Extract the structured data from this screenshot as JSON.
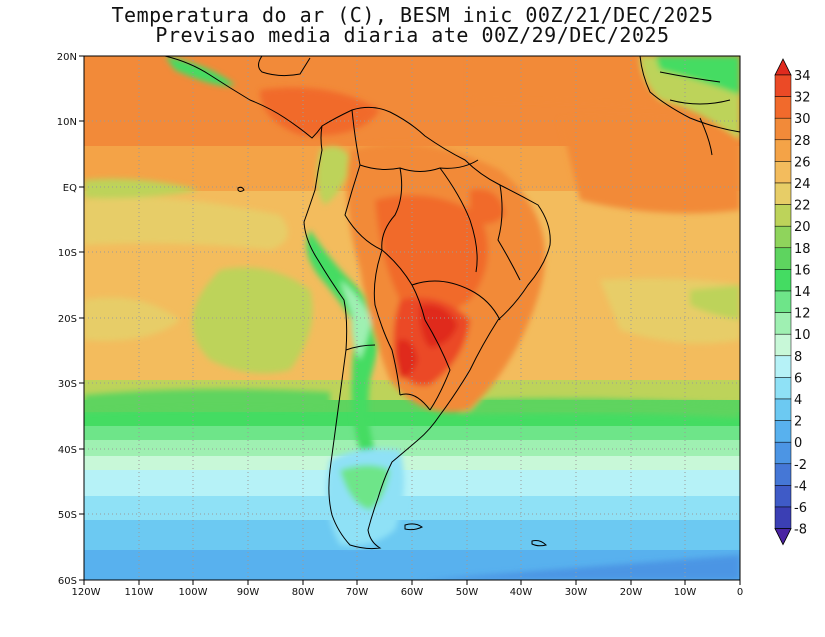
{
  "title": {
    "line1": "Temperatura do ar (C), BESM inic 00Z/21/DEC/2025",
    "line2": "Previsao media diaria ate 00Z/29/DEC/2025"
  },
  "map": {
    "region": "South America and adjacent Atlantic/Pacific",
    "lon_range": [
      -120,
      0
    ],
    "lat_range": [
      -60,
      20
    ],
    "lat_labels": [
      "20N",
      "10N",
      "EQ",
      "10S",
      "20S",
      "30S",
      "40S",
      "50S",
      "60S"
    ],
    "lon_labels": [
      "120W",
      "110W",
      "100W",
      "90W",
      "80W",
      "70W",
      "60W",
      "50W",
      "40W",
      "30W",
      "20W",
      "10W",
      "0"
    ],
    "grid": "dotted"
  },
  "colorbar": {
    "labels": [
      "34",
      "32",
      "30",
      "28",
      "26",
      "24",
      "22",
      "20",
      "18",
      "16",
      "14",
      "12",
      "10",
      "8",
      "6",
      "4",
      "2",
      "0",
      "-2",
      "-4",
      "-6",
      "-8"
    ],
    "colors": [
      "#e02a1e",
      "#eb4a26",
      "#f16a2c",
      "#f28a39",
      "#f4a347",
      "#f3bc5d",
      "#e7cd67",
      "#bdd35a",
      "#8fd45c",
      "#5ed45f",
      "#44dc62",
      "#6ee589",
      "#9ff0b2",
      "#c8f8d8",
      "#b6f2f7",
      "#8fe1f6",
      "#6cc9f2",
      "#58b1ee",
      "#4c95e4",
      "#4577d6",
      "#3f5bc7",
      "#3b3fb4",
      "#4a23a2"
    ]
  }
}
